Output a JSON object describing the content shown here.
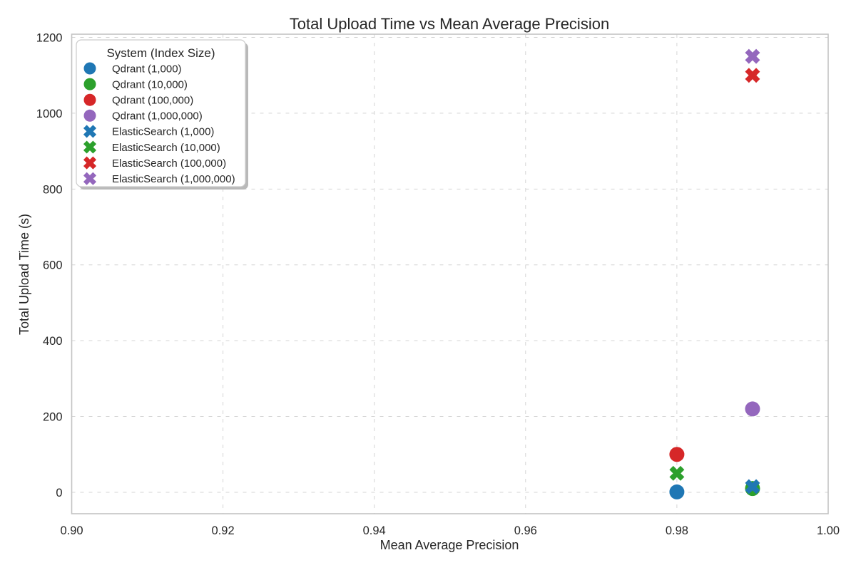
{
  "chart_data": {
    "type": "scatter",
    "title": "Total Upload Time vs Mean Average Precision",
    "xlabel": "Mean Average Precision",
    "ylabel": "Total Upload Time (s)",
    "xlim": [
      0.9,
      1.0
    ],
    "ylim": [
      -56.5,
      1208.5
    ],
    "xticks": [
      0.9,
      0.92,
      0.94,
      0.96,
      0.98,
      1.0
    ],
    "xtick_labels": [
      "0.90",
      "0.92",
      "0.94",
      "0.96",
      "0.98",
      "1.00"
    ],
    "yticks": [
      0,
      200,
      400,
      600,
      800,
      1000,
      1200
    ],
    "ytick_labels": [
      "0",
      "200",
      "400",
      "600",
      "800",
      "1000",
      "1200"
    ],
    "grid": true,
    "grid_style": "dashed",
    "legend": {
      "title": "System (Index Size)",
      "position": "upper left"
    },
    "series": [
      {
        "name": "Qdrant (1,000)",
        "marker": "circle",
        "color": "#1f77b4",
        "points": [
          [
            0.98,
            1
          ]
        ]
      },
      {
        "name": "Qdrant (10,000)",
        "marker": "circle",
        "color": "#2ca02c",
        "points": [
          [
            0.99,
            10
          ]
        ]
      },
      {
        "name": "Qdrant (100,000)",
        "marker": "circle",
        "color": "#d62728",
        "points": [
          [
            0.98,
            100
          ]
        ]
      },
      {
        "name": "Qdrant (1,000,000)",
        "marker": "circle",
        "color": "#9467bd",
        "points": [
          [
            0.99,
            220
          ]
        ]
      },
      {
        "name": "ElasticSearch (1,000)",
        "marker": "x",
        "color": "#1f77b4",
        "points": [
          [
            0.99,
            15
          ]
        ]
      },
      {
        "name": "ElasticSearch (10,000)",
        "marker": "x",
        "color": "#2ca02c",
        "points": [
          [
            0.98,
            50
          ]
        ]
      },
      {
        "name": "ElasticSearch (100,000)",
        "marker": "x",
        "color": "#d62728",
        "points": [
          [
            0.99,
            1100
          ]
        ]
      },
      {
        "name": "ElasticSearch (1,000,000)",
        "marker": "x",
        "color": "#9467bd",
        "points": [
          [
            0.99,
            1150
          ]
        ]
      }
    ],
    "colors": {
      "text": "#262626",
      "grid": "#d4d4d4",
      "spine": "#c3c3c3",
      "legend_border": "#cccccc",
      "legend_shadow": "#b9b9b9",
      "background": "#ffffff"
    }
  }
}
